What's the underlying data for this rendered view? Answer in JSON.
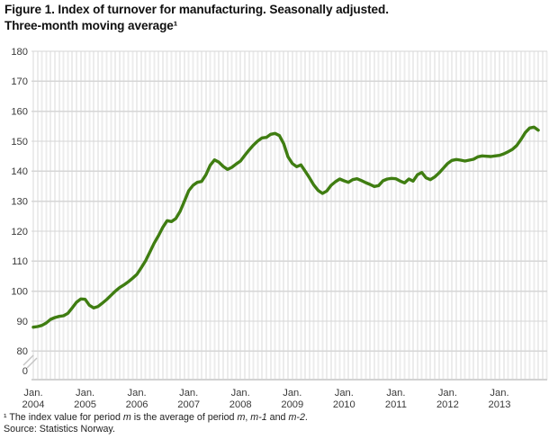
{
  "figure": {
    "title_line1": "Figure 1. Index of turnover for manufacturing. Seasonally adjusted.",
    "title_line2": "Three-month moving average¹",
    "footnote_parts": [
      {
        "text": "¹ The index value for period ",
        "italic": false
      },
      {
        "text": "m",
        "italic": true
      },
      {
        "text": " is the average of period ",
        "italic": false
      },
      {
        "text": "m",
        "italic": true
      },
      {
        "text": ", ",
        "italic": false
      },
      {
        "text": "m-1",
        "italic": true
      },
      {
        "text": " and ",
        "italic": false
      },
      {
        "text": "m-2",
        "italic": true
      },
      {
        "text": ".",
        "italic": false
      }
    ],
    "source": "Source: Statistics Norway."
  },
  "chart_data": {
    "type": "line",
    "title": "Index of turnover for manufacturing. Seasonally adjusted. Three-month moving average",
    "x_start": "Jan 2004",
    "x_end": "Oct 2013",
    "x_frequency": "monthly",
    "x_ticks": {
      "month_label": "Jan.",
      "years": [
        "2004",
        "2005",
        "2006",
        "2007",
        "2008",
        "2009",
        "2010",
        "2011",
        "2012",
        "2013"
      ]
    },
    "y_axis": {
      "ticks": [
        180,
        170,
        160,
        150,
        140,
        130,
        120,
        110,
        100,
        90,
        80
      ],
      "broken_zero_label": "0",
      "axis_break": true,
      "display_min": 80,
      "display_max": 180
    },
    "grid": {
      "vertical": "monthly",
      "horizontal": "every-10-units"
    },
    "colors": {
      "line": "#3f7d11",
      "grid_vertical": "#ececec",
      "grid_horizontal": "#d6d6d6",
      "axis_line": "#d2d2d2",
      "axis_text": "#3a3a3a",
      "break_mark": "#c4c4c4"
    },
    "series": [
      {
        "name": "Index of turnover, manufacturing",
        "values": [
          88.0,
          88.2,
          88.6,
          89.4,
          90.6,
          91.2,
          91.6,
          91.8,
          92.6,
          94.4,
          96.3,
          97.4,
          97.3,
          95.3,
          94.4,
          94.9,
          96.0,
          97.2,
          98.6,
          100.0,
          101.2,
          102.1,
          103.1,
          104.3,
          105.6,
          107.8,
          110.1,
          113.0,
          116.0,
          118.5,
          121.3,
          123.5,
          123.2,
          124.2,
          126.6,
          130.0,
          133.5,
          135.3,
          136.3,
          136.6,
          138.8,
          142.0,
          143.8,
          143.0,
          141.6,
          140.6,
          141.3,
          142.4,
          143.4,
          145.3,
          147.1,
          148.7,
          150.1,
          151.1,
          151.3,
          152.3,
          152.6,
          151.9,
          149.2,
          144.8,
          142.6,
          141.5,
          142.1,
          140.0,
          137.8,
          135.4,
          133.6,
          132.6,
          133.4,
          135.3,
          136.5,
          137.4,
          136.8,
          136.3,
          137.2,
          137.5,
          136.9,
          136.2,
          135.6,
          134.9,
          135.2,
          136.8,
          137.4,
          137.6,
          137.5,
          136.7,
          136.1,
          137.4,
          136.7,
          138.8,
          139.6,
          137.8,
          137.2,
          138.1,
          139.4,
          141.0,
          142.6,
          143.6,
          143.9,
          143.7,
          143.4,
          143.7,
          144.0,
          144.8,
          145.1,
          145.0,
          144.9,
          145.1,
          145.3,
          145.8,
          146.5,
          147.3,
          148.6,
          150.6,
          152.9,
          154.4,
          154.7,
          153.7
        ]
      }
    ]
  }
}
